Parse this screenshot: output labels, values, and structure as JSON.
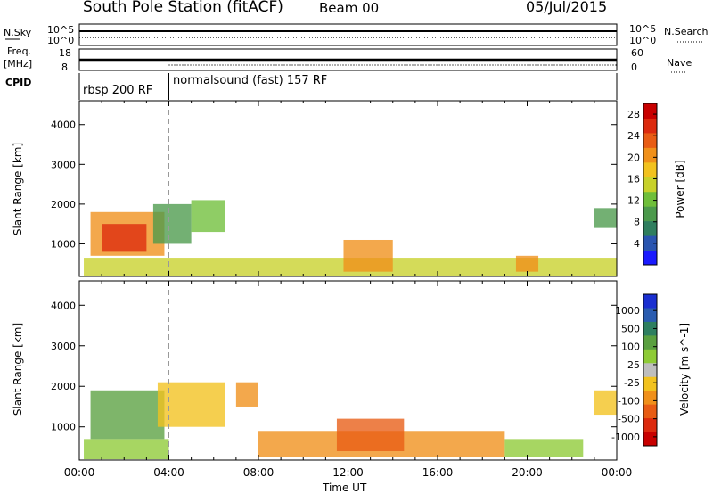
{
  "header": {
    "station": "South Pole Station (fitACF)",
    "beam": "Beam 00",
    "date": "05/Jul/2015"
  },
  "strips": {
    "nsky_label": "N.Sky",
    "nsearch_label": "N.Search",
    "freq_label_1": "Freq.",
    "freq_label_2": "[MHz]",
    "nave_label": "Nave",
    "cpid_label": "CPID",
    "count_ticks_left": [
      "10^5",
      "10^0"
    ],
    "count_ticks_right": [
      "10^5",
      "10^0"
    ],
    "freq_ticks_left": [
      "18",
      "8"
    ],
    "nave_ticks_right": [
      "60",
      "0"
    ],
    "cpid_segments": [
      {
        "label": "rbsp 200 RF",
        "start_hour": 0,
        "end_hour": 4
      },
      {
        "label": "normalsound (fast) 157 RF",
        "start_hour": 4,
        "end_hour": 24
      }
    ]
  },
  "colors": {
    "power_scale": [
      "#1a1aff",
      "#2a55b0",
      "#2f7e5e",
      "#4c9a4c",
      "#6fbf3a",
      "#c8d12a",
      "#f2c21e",
      "#f0901a",
      "#e85c14",
      "#dc2a0e",
      "#c80000"
    ],
    "velocity_scale": [
      "#1a2fd0",
      "#2a5cb0",
      "#2e7f60",
      "#5aa040",
      "#8ecb36",
      "#bebebe",
      "#f2c21e",
      "#f0901a",
      "#e85c14",
      "#dc2a0e",
      "#c80000"
    ]
  },
  "chart_data": [
    {
      "type": "heatmap",
      "panel": "power",
      "title": "",
      "xlabel": "Time UT",
      "ylabel": "Slant Range [km]",
      "x_ticks": [
        "00:00",
        "04:00",
        "08:00",
        "12:00",
        "16:00",
        "20:00",
        "00:00"
      ],
      "xlim_hours": [
        0,
        24
      ],
      "y_ticks": [
        "1000",
        "2000",
        "3000",
        "4000"
      ],
      "ylim_km": [
        180,
        4600
      ],
      "colorbar_label": "Power [dB]",
      "colorbar_ticks": [
        "4",
        "8",
        "12",
        "16",
        "20",
        "24",
        "28"
      ],
      "colorbar_range": [
        0,
        30
      ],
      "echo_regions": [
        {
          "hours": [
            0.2,
            24.0
          ],
          "range_km": [
            200,
            650
          ],
          "value": 14
        },
        {
          "hours": [
            0.5,
            3.8
          ],
          "range_km": [
            700,
            1800
          ],
          "value": 22
        },
        {
          "hours": [
            1.0,
            3.0
          ],
          "range_km": [
            800,
            1500
          ],
          "value": 27
        },
        {
          "hours": [
            3.3,
            5.0
          ],
          "range_km": [
            1000,
            2000
          ],
          "value": 10
        },
        {
          "hours": [
            5.0,
            6.5
          ],
          "range_km": [
            1300,
            2100
          ],
          "value": 12
        },
        {
          "hours": [
            11.8,
            14.0
          ],
          "range_km": [
            300,
            1100
          ],
          "value": 20
        },
        {
          "hours": [
            19.5,
            20.5
          ],
          "range_km": [
            300,
            700
          ],
          "value": 22
        },
        {
          "hours": [
            23.0,
            24.0
          ],
          "range_km": [
            1400,
            1900
          ],
          "value": 9
        }
      ]
    },
    {
      "type": "heatmap",
      "panel": "velocity",
      "title": "",
      "xlabel": "Time UT",
      "ylabel": "Slant Range [km]",
      "x_ticks": [
        "00:00",
        "04:00",
        "08:00",
        "12:00",
        "16:00",
        "20:00",
        "00:00"
      ],
      "xlim_hours": [
        0,
        24
      ],
      "y_ticks": [
        "1000",
        "2000",
        "3000",
        "4000"
      ],
      "ylim_km": [
        180,
        4600
      ],
      "colorbar_label": "Velocity [m s^-1]",
      "colorbar_ticks": [
        "1000",
        "500",
        "100",
        "25",
        "-25",
        "-100",
        "-500",
        "-1000"
      ],
      "colorbar_range": [
        -1200,
        1200
      ],
      "echo_regions": [
        {
          "hours": [
            0.2,
            4.0
          ],
          "range_km": [
            200,
            700
          ],
          "value": 300
        },
        {
          "hours": [
            0.5,
            3.8
          ],
          "range_km": [
            700,
            1900
          ],
          "value": 600
        },
        {
          "hours": [
            3.5,
            6.5
          ],
          "range_km": [
            1000,
            2100
          ],
          "value": -300
        },
        {
          "hours": [
            7.0,
            8.0
          ],
          "range_km": [
            1500,
            2100
          ],
          "value": -400
        },
        {
          "hours": [
            8.0,
            19.0
          ],
          "range_km": [
            250,
            900
          ],
          "value": -450
        },
        {
          "hours": [
            11.5,
            14.5
          ],
          "range_km": [
            400,
            1200
          ],
          "value": -600
        },
        {
          "hours": [
            19.0,
            22.5
          ],
          "range_km": [
            250,
            700
          ],
          "value": 150
        },
        {
          "hours": [
            23.0,
            24.0
          ],
          "range_km": [
            1300,
            1900
          ],
          "value": -350
        }
      ]
    }
  ]
}
